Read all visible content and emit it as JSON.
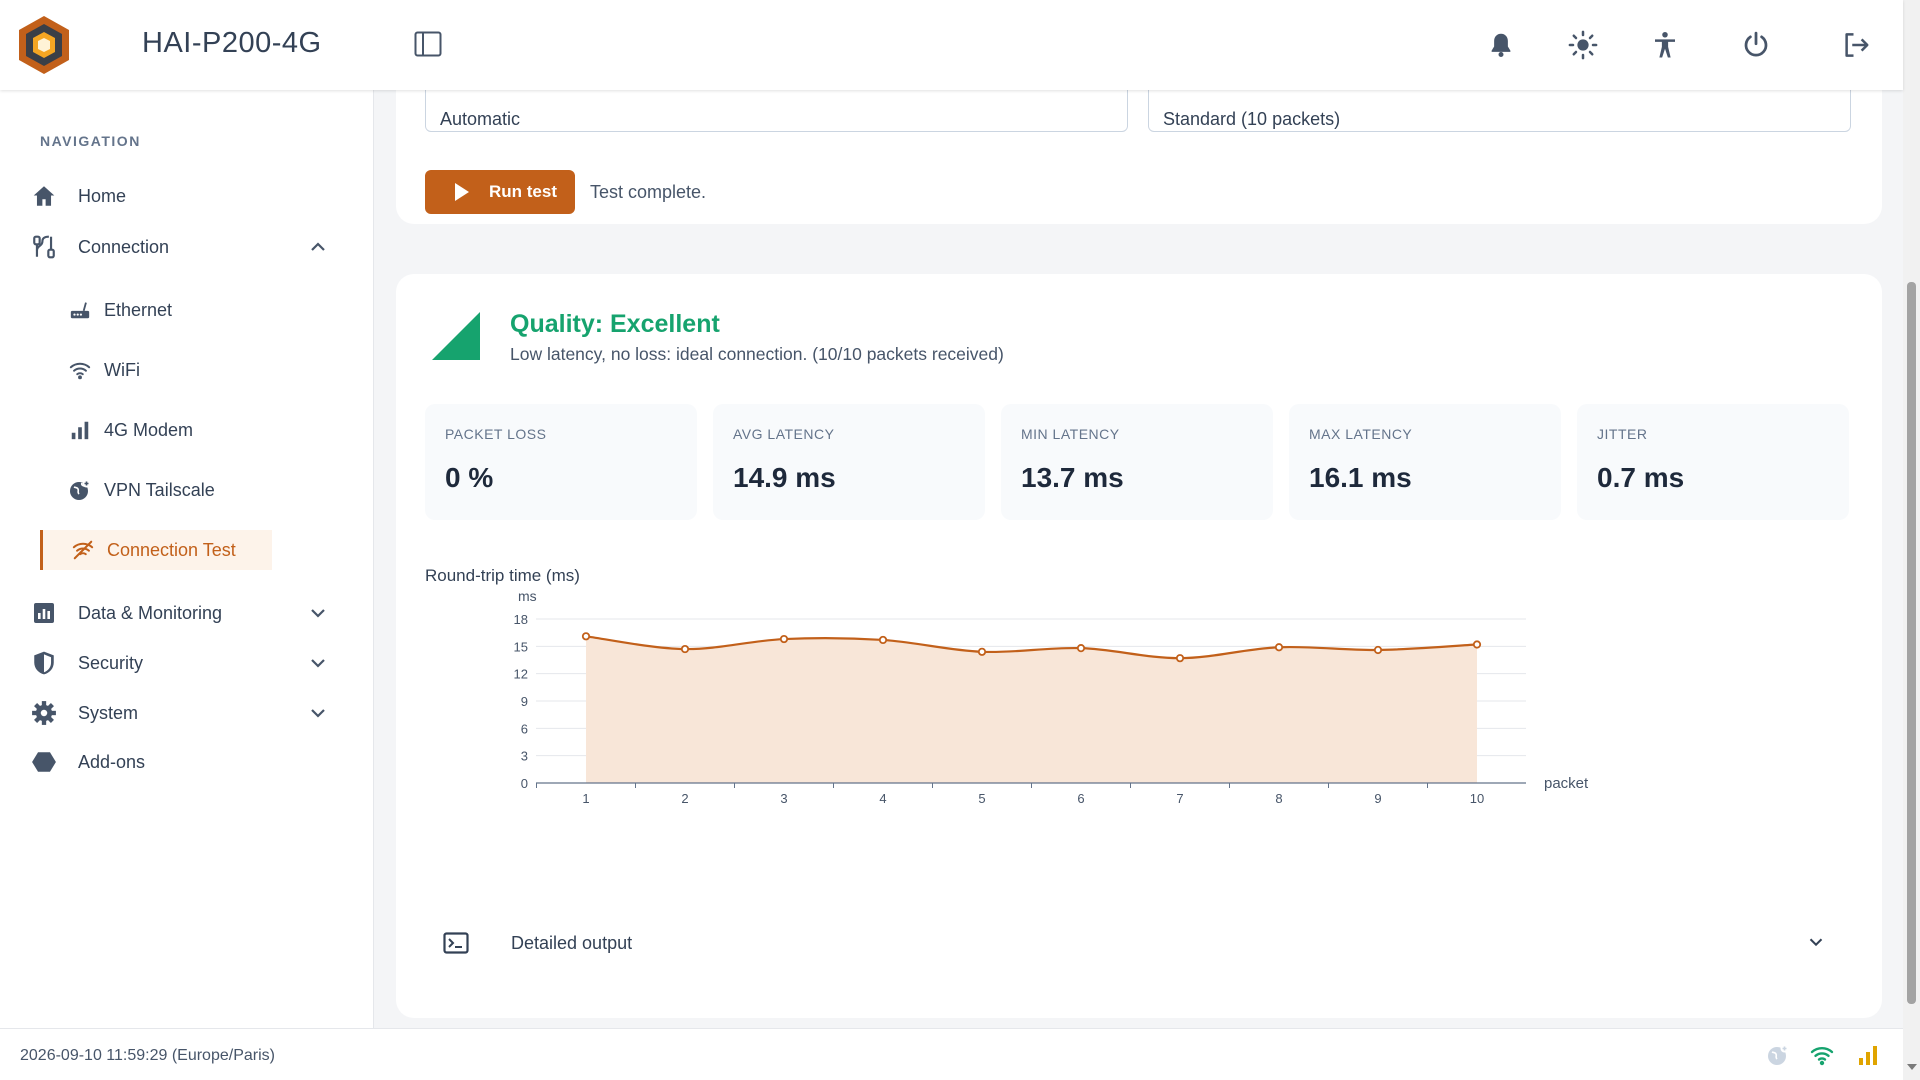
{
  "header": {
    "title": "HAI-P200-4G",
    "icons": [
      "logo-icon",
      "sidebar-toggle-icon",
      "bell-icon",
      "sun-icon",
      "accessibility-icon",
      "power-icon",
      "logout-icon"
    ]
  },
  "sidebar": {
    "heading": "NAVIGATION",
    "items": [
      {
        "label": "Home",
        "icon": "home-icon"
      },
      {
        "label": "Connection",
        "icon": "connection-icon",
        "expanded": true
      },
      {
        "label": "Data & Monitoring",
        "icon": "chart-icon"
      },
      {
        "label": "Security",
        "icon": "shield-icon"
      },
      {
        "label": "System",
        "icon": "gear-icon"
      },
      {
        "label": "Add-ons",
        "icon": "hexagon-icon"
      }
    ],
    "sub_items": [
      {
        "label": "Ethernet",
        "icon": "router-icon"
      },
      {
        "label": "WiFi",
        "icon": "wifi-icon"
      },
      {
        "label": "4G Modem",
        "icon": "signal-bars-icon"
      },
      {
        "label": "VPN Tailscale",
        "icon": "vpn-globe-icon"
      },
      {
        "label": "Connection Test",
        "icon": "connection-test-icon",
        "active": true
      }
    ]
  },
  "test_form": {
    "target_value": "Automatic",
    "mode_value": "Standard (10 packets)",
    "run_button": "Run test",
    "status": "Test complete."
  },
  "results": {
    "quality_title": "Quality: Excellent",
    "quality_description": "Low latency, no loss: ideal connection. (10/10 packets received)",
    "quality_color": "#16a36e",
    "stats": [
      {
        "label": "PACKET LOSS",
        "value": "0 %"
      },
      {
        "label": "AVG LATENCY",
        "value": "14.9 ms"
      },
      {
        "label": "MIN LATENCY",
        "value": "13.7 ms"
      },
      {
        "label": "MAX LATENCY",
        "value": "16.1 ms"
      },
      {
        "label": "JITTER",
        "value": "0.7 ms"
      }
    ],
    "chart_title": "Round-trip time (ms)",
    "details_label": "Detailed output"
  },
  "chart_data": {
    "type": "area",
    "title": "Round-trip time (ms)",
    "xlabel": "packet",
    "ylabel": "ms",
    "x": [
      1,
      2,
      3,
      4,
      5,
      6,
      7,
      8,
      9,
      10
    ],
    "series": [
      {
        "values": [
          16.1,
          14.7,
          15.8,
          15.7,
          14.4,
          14.8,
          13.7,
          14.9,
          14.6,
          15.2
        ]
      }
    ],
    "ylim": [
      0,
      18
    ],
    "yticks": [
      0,
      3,
      6,
      9,
      12,
      15,
      18
    ],
    "grid": true,
    "line_color": "#c2601a",
    "fill_color": "#f8e6d8"
  },
  "footer": {
    "datetime": "2026-09-10 11:59:29 (Europe/Paris)",
    "status_icons": [
      "vpn-status-icon",
      "wifi-status-icon",
      "cellular-status-icon"
    ]
  },
  "colors": {
    "accent": "#c2601a",
    "success": "#16a36e"
  }
}
